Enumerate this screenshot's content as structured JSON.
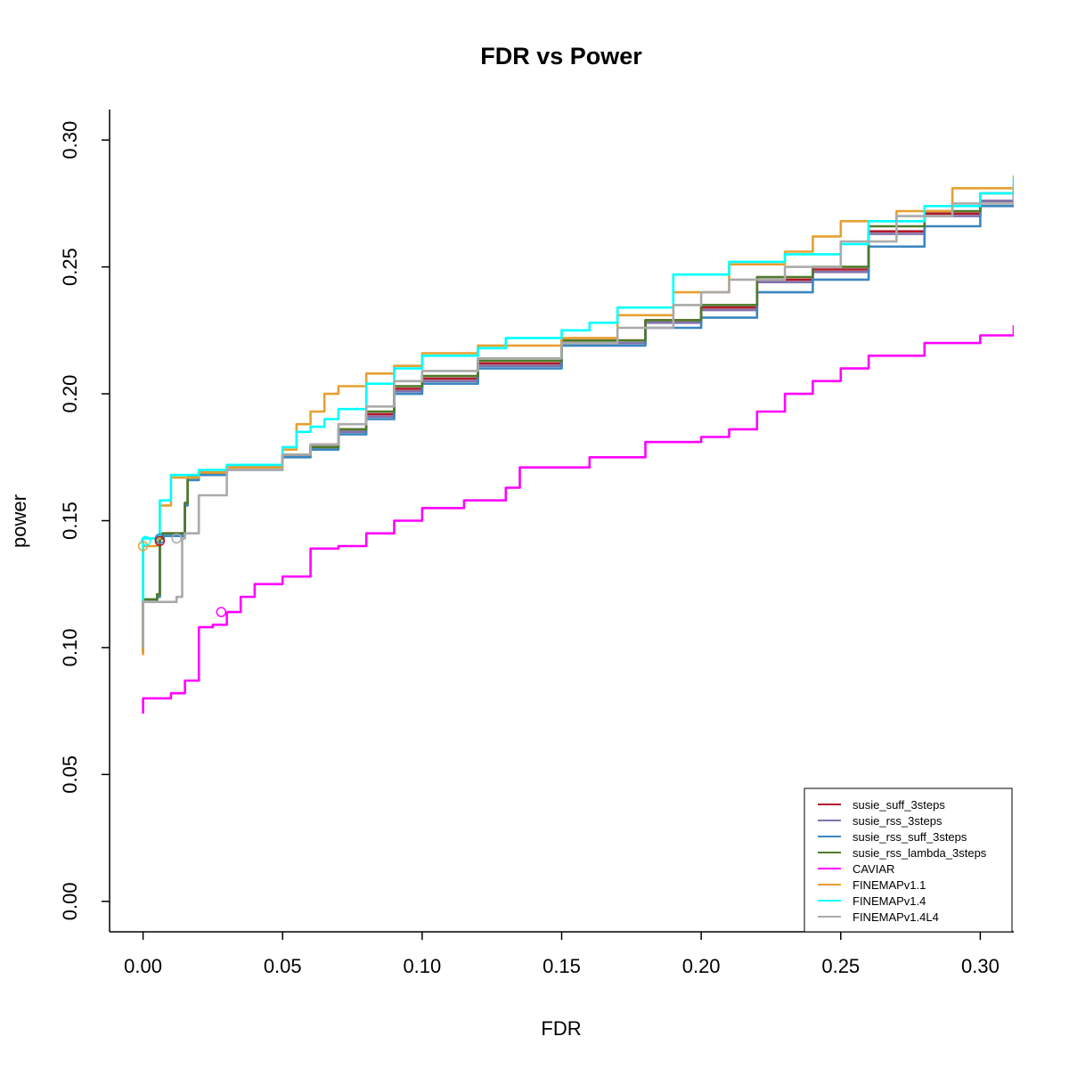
{
  "chart_data": {
    "type": "line",
    "title": "FDR vs Power",
    "xlabel": "FDR",
    "ylabel": "power",
    "xlim": [
      -0.012,
      0.312
    ],
    "ylim": [
      -0.012,
      0.312
    ],
    "x_ticks": [
      "0.00",
      "0.05",
      "0.10",
      "0.15",
      "0.20",
      "0.25",
      "0.30"
    ],
    "y_ticks": [
      "0.00",
      "0.05",
      "0.10",
      "0.15",
      "0.20",
      "0.25",
      "0.30"
    ],
    "x_tick_values": [
      0,
      0.05,
      0.1,
      0.15,
      0.2,
      0.25,
      0.3
    ],
    "y_tick_values": [
      0,
      0.05,
      0.1,
      0.15,
      0.2,
      0.25,
      0.3
    ],
    "grid": false,
    "legend_position": "bottom-right",
    "series": [
      {
        "name": "susie_suff_3steps",
        "color": "#b2182b",
        "x": [
          0.0,
          0.0,
          0.005,
          0.006,
          0.007,
          0.015,
          0.016,
          0.02,
          0.03,
          0.05,
          0.06,
          0.07,
          0.08,
          0.09,
          0.1,
          0.12,
          0.15,
          0.18,
          0.2,
          0.22,
          0.24,
          0.26,
          0.28,
          0.3,
          0.312
        ],
        "y": [
          0.098,
          0.118,
          0.12,
          0.143,
          0.145,
          0.157,
          0.167,
          0.169,
          0.171,
          0.176,
          0.18,
          0.186,
          0.192,
          0.202,
          0.206,
          0.212,
          0.221,
          0.229,
          0.234,
          0.245,
          0.249,
          0.264,
          0.271,
          0.276,
          0.279
        ]
      },
      {
        "name": "susie_rss_3steps",
        "color": "#8073ac",
        "x": [
          0.0,
          0.0,
          0.005,
          0.006,
          0.007,
          0.015,
          0.016,
          0.02,
          0.03,
          0.05,
          0.06,
          0.07,
          0.08,
          0.09,
          0.1,
          0.12,
          0.15,
          0.18,
          0.2,
          0.22,
          0.24,
          0.26,
          0.28,
          0.3,
          0.312
        ],
        "y": [
          0.098,
          0.118,
          0.12,
          0.143,
          0.144,
          0.157,
          0.167,
          0.169,
          0.171,
          0.176,
          0.179,
          0.185,
          0.191,
          0.201,
          0.205,
          0.211,
          0.22,
          0.228,
          0.233,
          0.244,
          0.248,
          0.263,
          0.27,
          0.276,
          0.28
        ]
      },
      {
        "name": "susie_rss_suff_3steps",
        "color": "#3a87c0",
        "x": [
          0.0,
          0.0,
          0.005,
          0.006,
          0.007,
          0.015,
          0.016,
          0.02,
          0.03,
          0.05,
          0.06,
          0.07,
          0.08,
          0.09,
          0.1,
          0.12,
          0.15,
          0.18,
          0.2,
          0.22,
          0.24,
          0.26,
          0.28,
          0.3,
          0.312
        ],
        "y": [
          0.098,
          0.118,
          0.12,
          0.143,
          0.144,
          0.156,
          0.166,
          0.168,
          0.17,
          0.175,
          0.178,
          0.184,
          0.19,
          0.2,
          0.204,
          0.21,
          0.219,
          0.226,
          0.23,
          0.24,
          0.245,
          0.258,
          0.266,
          0.274,
          0.278
        ]
      },
      {
        "name": "susie_rss_lambda_3steps",
        "color": "#4d7a2a",
        "x": [
          0.0,
          0.0,
          0.005,
          0.006,
          0.007,
          0.015,
          0.016,
          0.02,
          0.03,
          0.05,
          0.06,
          0.07,
          0.08,
          0.09,
          0.1,
          0.12,
          0.15,
          0.18,
          0.2,
          0.22,
          0.24,
          0.26,
          0.28,
          0.3,
          0.312
        ],
        "y": [
          0.098,
          0.119,
          0.121,
          0.143,
          0.145,
          0.157,
          0.167,
          0.169,
          0.171,
          0.176,
          0.179,
          0.186,
          0.193,
          0.203,
          0.207,
          0.213,
          0.221,
          0.229,
          0.235,
          0.246,
          0.25,
          0.266,
          0.272,
          0.279,
          0.281
        ]
      },
      {
        "name": "CAVIAR",
        "color": "#ff00ff",
        "x": [
          0.0,
          0.0,
          0.01,
          0.015,
          0.02,
          0.025,
          0.03,
          0.035,
          0.04,
          0.05,
          0.06,
          0.07,
          0.08,
          0.09,
          0.1,
          0.115,
          0.13,
          0.135,
          0.15,
          0.16,
          0.18,
          0.2,
          0.21,
          0.22,
          0.23,
          0.24,
          0.25,
          0.26,
          0.28,
          0.3,
          0.312
        ],
        "y": [
          0.074,
          0.08,
          0.082,
          0.087,
          0.108,
          0.109,
          0.114,
          0.12,
          0.125,
          0.128,
          0.139,
          0.14,
          0.145,
          0.15,
          0.155,
          0.158,
          0.163,
          0.171,
          0.171,
          0.175,
          0.181,
          0.183,
          0.186,
          0.193,
          0.2,
          0.205,
          0.21,
          0.215,
          0.22,
          0.223,
          0.227
        ]
      },
      {
        "name": "FINEMAPv1.1",
        "color": "#e6a030",
        "x": [
          0.0,
          0.0,
          0.005,
          0.006,
          0.01,
          0.02,
          0.03,
          0.05,
          0.055,
          0.06,
          0.065,
          0.07,
          0.08,
          0.09,
          0.1,
          0.12,
          0.15,
          0.17,
          0.19,
          0.21,
          0.23,
          0.24,
          0.25,
          0.27,
          0.29,
          0.312
        ],
        "y": [
          0.097,
          0.14,
          0.143,
          0.156,
          0.167,
          0.169,
          0.171,
          0.178,
          0.188,
          0.193,
          0.2,
          0.203,
          0.208,
          0.211,
          0.216,
          0.219,
          0.222,
          0.231,
          0.24,
          0.251,
          0.256,
          0.262,
          0.268,
          0.272,
          0.281,
          0.286
        ]
      },
      {
        "name": "FINEMAPv1.4",
        "color": "#00ffff",
        "x": [
          0.0,
          0.0,
          0.005,
          0.006,
          0.01,
          0.02,
          0.03,
          0.05,
          0.055,
          0.06,
          0.065,
          0.07,
          0.08,
          0.09,
          0.1,
          0.12,
          0.13,
          0.15,
          0.16,
          0.17,
          0.19,
          0.21,
          0.23,
          0.25,
          0.26,
          0.28,
          0.3,
          0.312
        ],
        "y": [
          0.118,
          0.143,
          0.144,
          0.158,
          0.168,
          0.17,
          0.172,
          0.179,
          0.185,
          0.187,
          0.19,
          0.194,
          0.204,
          0.21,
          0.215,
          0.218,
          0.222,
          0.225,
          0.228,
          0.234,
          0.247,
          0.252,
          0.255,
          0.259,
          0.268,
          0.274,
          0.279,
          0.285
        ]
      },
      {
        "name": "FINEMAPv1.4L4",
        "color": "#aaaaaa",
        "x": [
          0.0,
          0.0,
          0.012,
          0.014,
          0.015,
          0.02,
          0.03,
          0.05,
          0.06,
          0.07,
          0.08,
          0.09,
          0.1,
          0.12,
          0.15,
          0.17,
          0.19,
          0.2,
          0.21,
          0.23,
          0.25,
          0.27,
          0.29,
          0.312
        ],
        "y": [
          0.1,
          0.118,
          0.12,
          0.143,
          0.145,
          0.16,
          0.17,
          0.176,
          0.18,
          0.188,
          0.195,
          0.205,
          0.209,
          0.214,
          0.22,
          0.226,
          0.235,
          0.24,
          0.245,
          0.25,
          0.26,
          0.27,
          0.275,
          0.283
        ]
      }
    ],
    "markers": [
      {
        "series": "FINEMAPv1.1",
        "x": 0.0,
        "y": 0.14
      },
      {
        "series": "FINEMAPv1.4",
        "x": 0.001,
        "y": 0.142
      },
      {
        "series": "susie_rss_suff_3steps",
        "x": 0.006,
        "y": 0.143
      },
      {
        "series": "susie_suff_3steps",
        "x": 0.006,
        "y": 0.142
      },
      {
        "series": "FINEMAPv1.4L4",
        "x": 0.012,
        "y": 0.143
      },
      {
        "series": "CAVIAR",
        "x": 0.028,
        "y": 0.114
      }
    ]
  }
}
